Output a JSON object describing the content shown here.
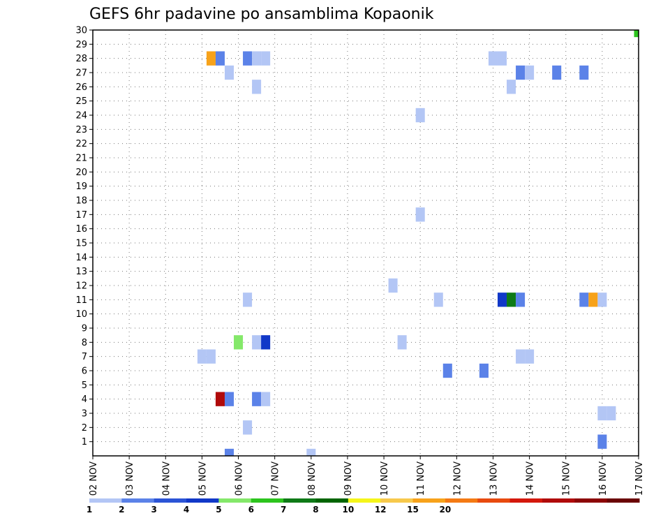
{
  "chart_data": {
    "type": "heatmap",
    "title": "GEFS 6hr padavine po ansamblima Kopaonik",
    "y_ticks": [
      "1",
      "2",
      "3",
      "4",
      "5",
      "6",
      "7",
      "8",
      "9",
      "10",
      "11",
      "12",
      "13",
      "14",
      "15",
      "16",
      "17",
      "18",
      "19",
      "20",
      "21",
      "22",
      "23",
      "24",
      "25",
      "26",
      "27",
      "28",
      "29",
      "30"
    ],
    "x_ticks": [
      "02 NOV",
      "03 NOV",
      "04 NOV",
      "05 NOV",
      "06 NOV",
      "07 NOV",
      "08 NOV",
      "09 NOV",
      "10 NOV",
      "11 NOV",
      "12 NOV",
      "13 NOV",
      "14 NOV",
      "15 NOV",
      "16 NOV",
      "17 NOV"
    ],
    "x_range_days": [
      0,
      15
    ],
    "y_range": [
      0,
      30
    ],
    "grid": true,
    "colorbar": {
      "colors": [
        "#b3c6f5",
        "#5b82e8",
        "#2b54d6",
        "#1138c8",
        "#84e86a",
        "#2cc41d",
        "#0e7a17",
        "#006400",
        "#f5f51a",
        "#f7c94c",
        "#f7a21a",
        "#f47a14",
        "#e84a0f",
        "#d4180c",
        "#b00a0a",
        "#8c0505",
        "#6a0303"
      ],
      "tick_labels": [
        "1",
        "2",
        "3",
        "4",
        "5",
        "6",
        "7",
        "8",
        "10",
        "12",
        "15",
        "20"
      ]
    },
    "cells": [
      {
        "day": 3.25,
        "member": 28,
        "color": "#f7a21a"
      },
      {
        "day": 3.5,
        "member": 28,
        "color": "#5b82e8"
      },
      {
        "day": 4.25,
        "member": 28,
        "color": "#5b82e8"
      },
      {
        "day": 4.5,
        "member": 28,
        "color": "#b3c6f5"
      },
      {
        "day": 4.75,
        "member": 28,
        "color": "#b3c6f5"
      },
      {
        "day": 11.0,
        "member": 28,
        "color": "#b3c6f5"
      },
      {
        "day": 11.25,
        "member": 28,
        "color": "#b3c6f5"
      },
      {
        "day": 3.75,
        "member": 27,
        "color": "#b3c6f5"
      },
      {
        "day": 11.75,
        "member": 27,
        "color": "#5b82e8"
      },
      {
        "day": 12.0,
        "member": 27,
        "color": "#b3c6f5"
      },
      {
        "day": 12.75,
        "member": 27,
        "color": "#5b82e8"
      },
      {
        "day": 13.5,
        "member": 27,
        "color": "#5b82e8"
      },
      {
        "day": 4.5,
        "member": 26,
        "color": "#b3c6f5"
      },
      {
        "day": 11.5,
        "member": 26,
        "color": "#b3c6f5"
      },
      {
        "day": 9.0,
        "member": 24,
        "color": "#b3c6f5"
      },
      {
        "day": 9.0,
        "member": 17,
        "color": "#b3c6f5"
      },
      {
        "day": 8.25,
        "member": 12,
        "color": "#b3c6f5"
      },
      {
        "day": 4.25,
        "member": 11,
        "color": "#b3c6f5"
      },
      {
        "day": 9.5,
        "member": 11,
        "color": "#b3c6f5"
      },
      {
        "day": 11.25,
        "member": 11,
        "color": "#1138c8"
      },
      {
        "day": 11.5,
        "member": 11,
        "color": "#0e7a17"
      },
      {
        "day": 11.75,
        "member": 11,
        "color": "#5b82e8"
      },
      {
        "day": 13.5,
        "member": 11,
        "color": "#5b82e8"
      },
      {
        "day": 13.75,
        "member": 11,
        "color": "#f7a21a"
      },
      {
        "day": 14.0,
        "member": 11,
        "color": "#b3c6f5"
      },
      {
        "day": 4.0,
        "member": 8,
        "color": "#84e86a"
      },
      {
        "day": 4.5,
        "member": 8,
        "color": "#b3c6f5"
      },
      {
        "day": 4.75,
        "member": 8,
        "color": "#1138c8"
      },
      {
        "day": 8.5,
        "member": 8,
        "color": "#b3c6f5"
      },
      {
        "day": 3.0,
        "member": 7,
        "color": "#b3c6f5"
      },
      {
        "day": 3.25,
        "member": 7,
        "color": "#b3c6f5"
      },
      {
        "day": 11.75,
        "member": 7,
        "color": "#b3c6f5"
      },
      {
        "day": 12.0,
        "member": 7,
        "color": "#b3c6f5"
      },
      {
        "day": 9.75,
        "member": 6,
        "color": "#5b82e8"
      },
      {
        "day": 10.75,
        "member": 6,
        "color": "#5b82e8"
      },
      {
        "day": 3.5,
        "member": 4,
        "color": "#b00a0a"
      },
      {
        "day": 3.75,
        "member": 4,
        "color": "#5b82e8"
      },
      {
        "day": 4.5,
        "member": 4,
        "color": "#5b82e8"
      },
      {
        "day": 4.75,
        "member": 4,
        "color": "#b3c6f5"
      },
      {
        "day": 14.0,
        "member": 3,
        "color": "#b3c6f5"
      },
      {
        "day": 14.25,
        "member": 3,
        "color": "#b3c6f5"
      },
      {
        "day": 4.25,
        "member": 2,
        "color": "#b3c6f5"
      },
      {
        "day": 14.0,
        "member": 1,
        "color": "#5b82e8"
      },
      {
        "day": 3.75,
        "member": 0,
        "color": "#5b82e8"
      },
      {
        "day": 6.0,
        "member": 0,
        "color": "#b3c6f5"
      },
      {
        "day": 15.0,
        "member": 30,
        "color": "#2cc41d"
      }
    ]
  }
}
